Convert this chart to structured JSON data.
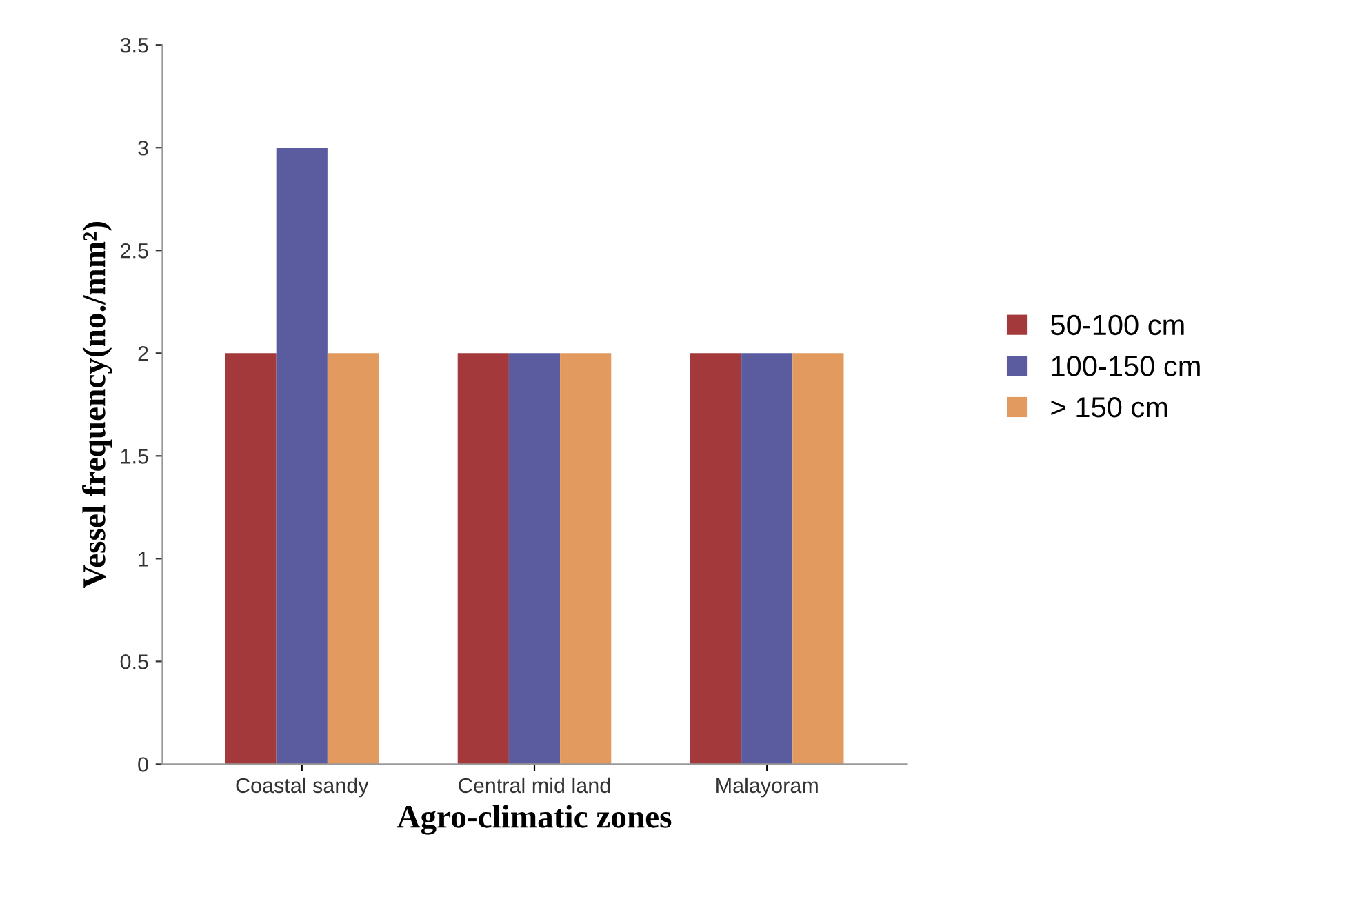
{
  "chart_data": {
    "type": "bar",
    "xlabel": "Agro-climatic zones",
    "ylabel": "Vessel frequency(no./mm²)",
    "categories": [
      "Coastal sandy",
      "Central mid land",
      "Malayoram"
    ],
    "series": [
      {
        "name": "50-100 cm",
        "color": "#a3393b",
        "values": [
          2,
          2,
          2
        ]
      },
      {
        "name": "100-150 cm",
        "color": "#5b5ca0",
        "values": [
          3,
          2,
          2
        ]
      },
      {
        "name": "> 150 cm",
        "color": "#e39a5e",
        "values": [
          2,
          2,
          2
        ]
      }
    ],
    "ylim": [
      0,
      3.5
    ],
    "yticks": [
      0,
      0.5,
      1,
      1.5,
      2,
      2.5,
      3,
      3.5
    ],
    "grid": false,
    "legend": "right"
  }
}
